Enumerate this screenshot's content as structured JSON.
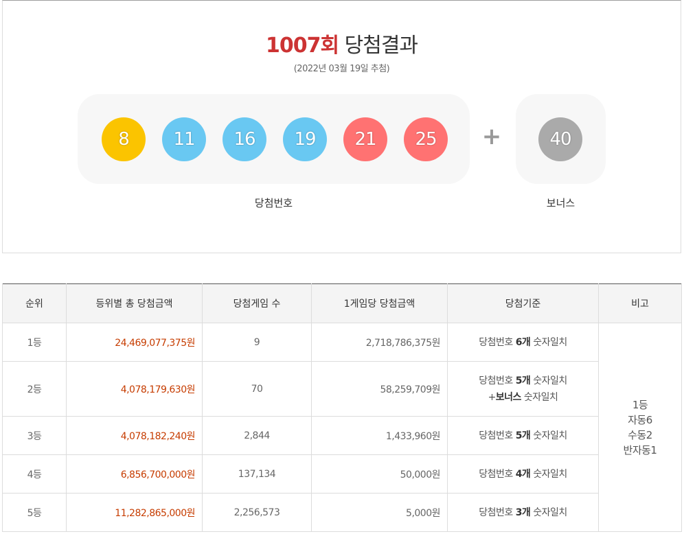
{
  "result": {
    "round_label": "1007회",
    "title_suffix": "당첨결과",
    "draw_date": "(2022년 03월 19일 추첨)",
    "winning_numbers": [
      {
        "number": "8",
        "color": "#fbc400"
      },
      {
        "number": "11",
        "color": "#69c8f2"
      },
      {
        "number": "16",
        "color": "#69c8f2"
      },
      {
        "number": "19",
        "color": "#69c8f2"
      },
      {
        "number": "21",
        "color": "#ff7272"
      },
      {
        "number": "25",
        "color": "#ff7272"
      }
    ],
    "plus_sign": "+",
    "bonus_number": {
      "number": "40",
      "color": "#aaaaaa"
    },
    "winning_caption": "당첨번호",
    "bonus_caption": "보너스"
  },
  "table": {
    "headers": [
      "순위",
      "등위별 총 당첨금액",
      "당첨게임 수",
      "1게임당 당첨금액",
      "당첨기준",
      "비고"
    ],
    "rows": [
      {
        "rank": "1등",
        "total": "24,469,077,375원",
        "games": "9",
        "per_game": "2,718,786,375원",
        "crit_pre": "당첨번호 ",
        "crit_bold": "6개",
        "crit_post": " 숫자일치"
      },
      {
        "rank": "2등",
        "total": "4,078,179,630원",
        "games": "70",
        "per_game": "58,259,709원",
        "crit_pre": "당첨번호 ",
        "crit_bold": "5개",
        "crit_post": " 숫자일치",
        "crit2_pre": "+",
        "crit2_bold": "보너스",
        "crit2_post": " 숫자일치"
      },
      {
        "rank": "3등",
        "total": "4,078,182,240원",
        "games": "2,844",
        "per_game": "1,433,960원",
        "crit_pre": "당첨번호 ",
        "crit_bold": "5개",
        "crit_post": " 숫자일치"
      },
      {
        "rank": "4등",
        "total": "6,856,700,000원",
        "games": "137,134",
        "per_game": "50,000원",
        "crit_pre": "당첨번호 ",
        "crit_bold": "4개",
        "crit_post": " 숫자일치"
      },
      {
        "rank": "5등",
        "total": "11,282,865,000원",
        "games": "2,256,573",
        "per_game": "5,000원",
        "crit_pre": "당첨번호 ",
        "crit_bold": "3개",
        "crit_post": " 숫자일치"
      }
    ],
    "note_lines": [
      "1등",
      "자동6",
      "수동2",
      "반자동1"
    ]
  }
}
